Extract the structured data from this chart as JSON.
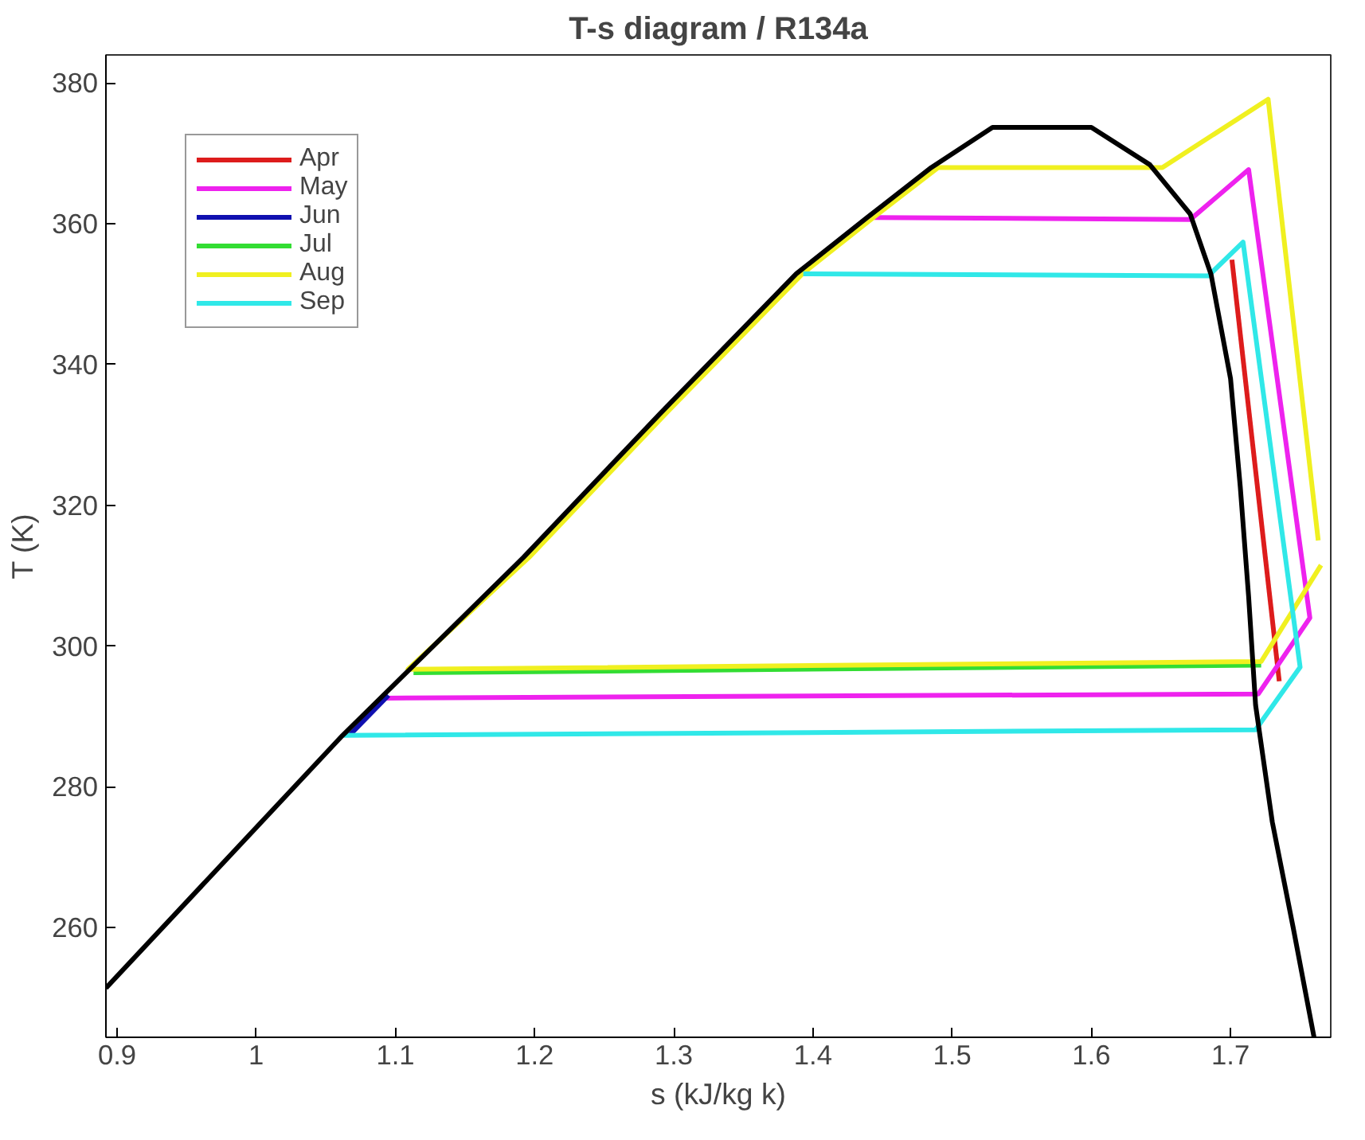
{
  "chart_data": {
    "type": "line",
    "title": "T-s diagram / R134a",
    "xlabel": "s (kJ/kg k)",
    "ylabel": "T (K)",
    "xlim": [
      0.892,
      1.772
    ],
    "ylim": [
      244.4,
      384
    ],
    "xticks": [
      0.9,
      1,
      1.1,
      1.2,
      1.3,
      1.4,
      1.5,
      1.6,
      1.7
    ],
    "yticks": [
      260,
      280,
      300,
      320,
      340,
      360,
      380
    ],
    "grid": false,
    "legend": "top left",
    "line_style": "solid",
    "marker": "none",
    "series": [
      {
        "name": "Apr",
        "color": "#dd1c1c",
        "x": [
          1.701,
          1.735
        ],
        "values": [
          354.9,
          295
        ]
      },
      {
        "name": "May",
        "color": "#ee22ee",
        "x": [
          1.444,
          1.671,
          1.713,
          1.757,
          1.72,
          1.092
        ],
        "values": [
          360.9,
          360.6,
          367.7,
          304,
          293.2,
          292.6
        ]
      },
      {
        "name": "Jun",
        "color": "#1010b0",
        "x": [
          1.067,
          1.095
        ],
        "values": [
          287.3,
          293
        ]
      },
      {
        "name": "Jul",
        "color": "#33dd33",
        "x": [
          1.113,
          1.722
        ],
        "values": [
          296.2,
          297.3
        ]
      },
      {
        "name": "Aug",
        "color": "#f0f020",
        "x": [
          1.765,
          1.722,
          1.109,
          1.196,
          1.294,
          1.393,
          1.444,
          1.49,
          1.651,
          1.727,
          1.763
        ],
        "values": [
          311.5,
          297.8,
          296.7,
          312.6,
          333,
          353,
          361,
          368,
          368,
          377.7,
          315
        ]
      },
      {
        "name": "Sep",
        "color": "#30e8e8",
        "x": [
          1.393,
          1.684,
          1.709,
          1.75,
          1.718,
          1.062
        ],
        "values": [
          352.9,
          352.6,
          357.4,
          297,
          288.1,
          287.3
        ]
      },
      {
        "color": "#000000",
        "x": [
          0.892,
          1.062,
          1.192,
          1.29,
          1.388,
          1.439,
          1.485,
          1.529,
          1.6,
          1.642,
          1.671,
          1.686,
          1.7,
          1.707,
          1.713,
          1.718,
          1.73,
          1.745,
          1.76
        ],
        "values": [
          251.4,
          287.3,
          312.6,
          333,
          352.9,
          360.9,
          368,
          373.7,
          373.7,
          368.4,
          361.4,
          352.8,
          338,
          322.6,
          307,
          291.6,
          275,
          260,
          244.4
        ]
      }
    ]
  }
}
